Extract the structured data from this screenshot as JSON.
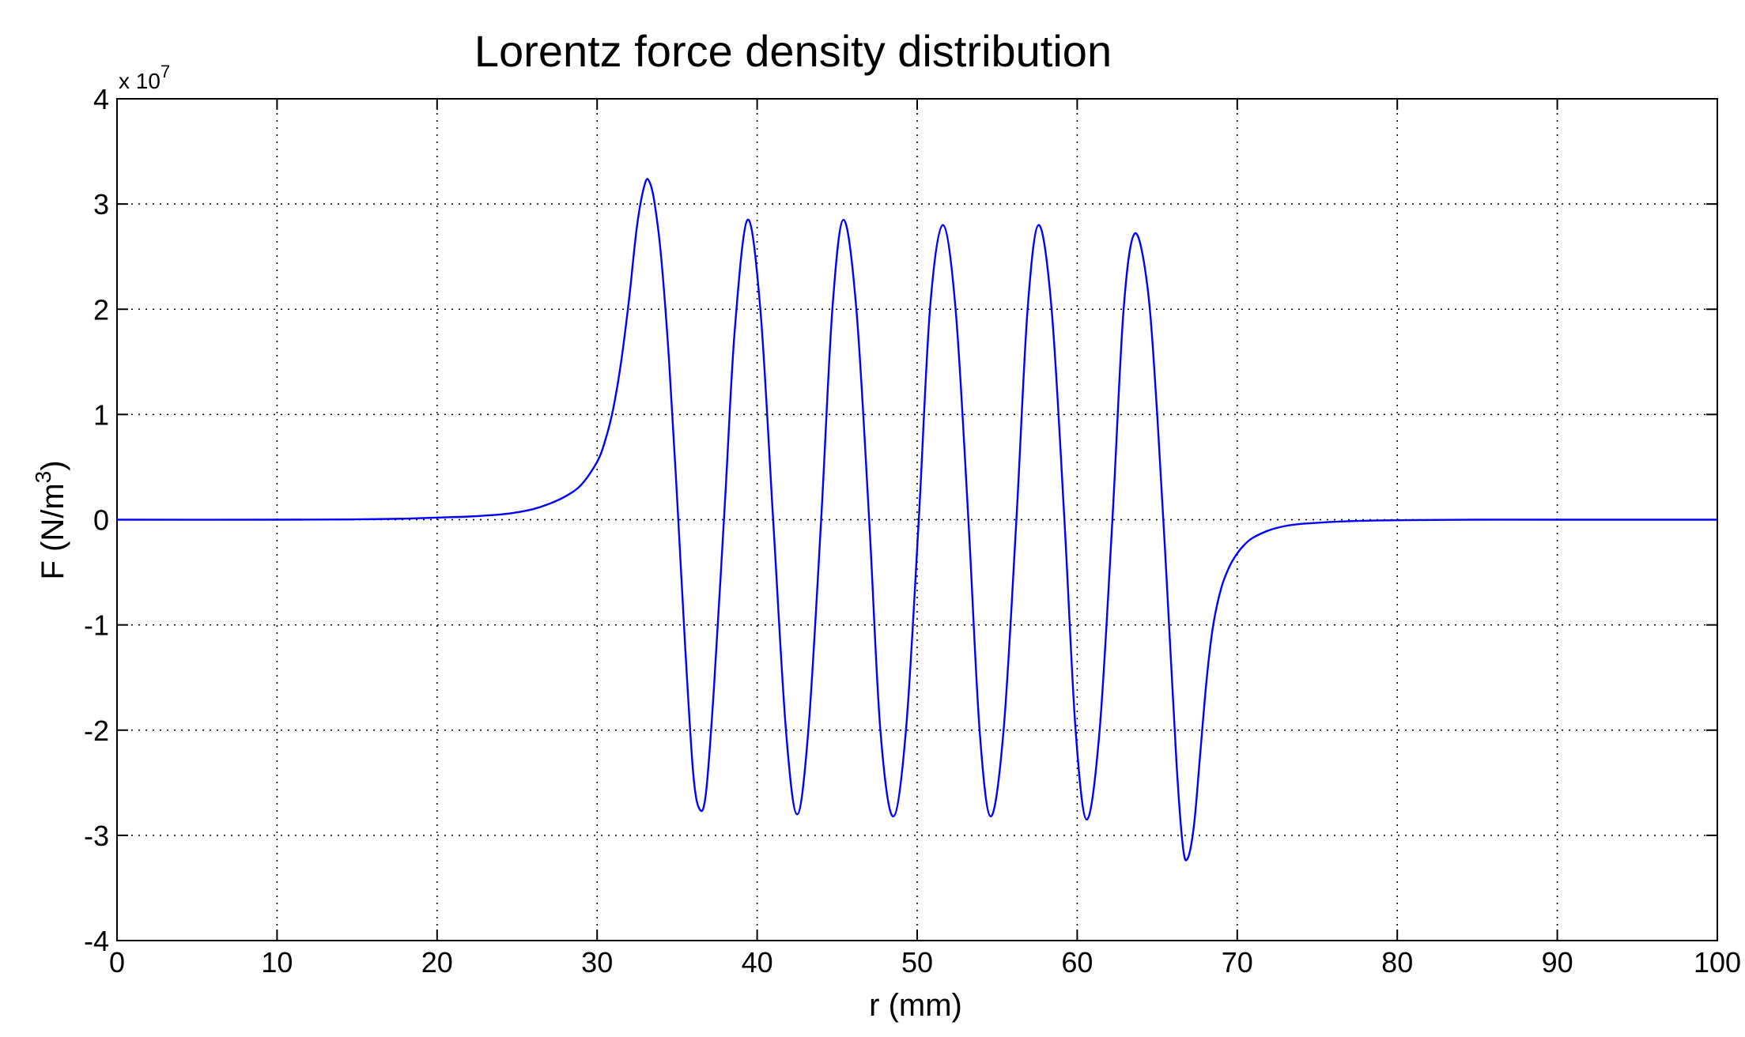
{
  "chart_data": {
    "type": "line",
    "title": "Lorentz force density distribution",
    "xlabel": "r (mm)",
    "ylabel_main": "F (N/m",
    "ylabel_sup": "3",
    "ylabel_close": ")",
    "y_multiplier_base": "x 10",
    "y_multiplier_exp": "7",
    "xlim": [
      0,
      100
    ],
    "ylim": [
      -4,
      4
    ],
    "x_ticks": [
      0,
      10,
      20,
      30,
      40,
      50,
      60,
      70,
      80,
      90,
      100
    ],
    "y_ticks": [
      -4,
      -3,
      -2,
      -1,
      0,
      1,
      2,
      3,
      4
    ],
    "x_tick_labels": [
      "0",
      "10",
      "20",
      "30",
      "40",
      "50",
      "60",
      "70",
      "80",
      "90",
      "100"
    ],
    "y_tick_labels": [
      "-4",
      "-3",
      "-2",
      "-1",
      "0",
      "1",
      "2",
      "3",
      "4"
    ],
    "grid": true,
    "line_color": "#0000ff",
    "series": [
      {
        "x": [
          0,
          10,
          15,
          18,
          20,
          22,
          24,
          25,
          26,
          27,
          28,
          29,
          30,
          30.5,
          31,
          31.5,
          32,
          32.5,
          33.0,
          33.3,
          33.6,
          34.0,
          34.5,
          35.0,
          35.5,
          36.0,
          36.4,
          36.8,
          37.3,
          38.0,
          38.6,
          39.4,
          40.2,
          41.0,
          41.8,
          42.5,
          43.2,
          44.0,
          44.7,
          45.4,
          46.2,
          47.0,
          47.7,
          48.5,
          49.3,
          50.1,
          50.8,
          51.6,
          52.4,
          53.2,
          53.9,
          54.6,
          55.4,
          56.2,
          56.9,
          57.6,
          58.4,
          59.2,
          59.9,
          60.6,
          61.4,
          62.2,
          62.9,
          63.6,
          64.4,
          65.0,
          65.6,
          66.2,
          66.6,
          66.9,
          67.3,
          67.7,
          68.1,
          68.5,
          69.0,
          69.5,
          70.0,
          70.5,
          71.0,
          72.0,
          73.0,
          74.0,
          75.0,
          76.0,
          78.0,
          80.0,
          85.0,
          90.0,
          100.0
        ],
        "y": [
          0,
          0,
          0.003,
          0.01,
          0.02,
          0.03,
          0.05,
          0.07,
          0.1,
          0.15,
          0.22,
          0.33,
          0.55,
          0.75,
          1.05,
          1.5,
          2.1,
          2.8,
          3.2,
          3.2,
          3.0,
          2.5,
          1.5,
          0.2,
          -1.2,
          -2.4,
          -2.75,
          -2.6,
          -1.6,
          0.2,
          1.8,
          2.85,
          2.0,
          0.0,
          -2.0,
          -2.8,
          -2.0,
          0.0,
          2.0,
          2.85,
          2.0,
          0.0,
          -2.0,
          -2.82,
          -2.0,
          0.0,
          2.0,
          2.8,
          2.0,
          0.0,
          -2.0,
          -2.82,
          -2.0,
          0.0,
          2.0,
          2.8,
          2.0,
          0.0,
          -2.0,
          -2.85,
          -2.0,
          0.0,
          2.0,
          2.72,
          2.2,
          1.0,
          -0.6,
          -2.3,
          -3.1,
          -3.22,
          -2.9,
          -2.2,
          -1.5,
          -1.0,
          -0.65,
          -0.45,
          -0.32,
          -0.23,
          -0.17,
          -0.1,
          -0.06,
          -0.04,
          -0.03,
          -0.02,
          -0.01,
          -0.005,
          0,
          0,
          0
        ]
      }
    ]
  }
}
